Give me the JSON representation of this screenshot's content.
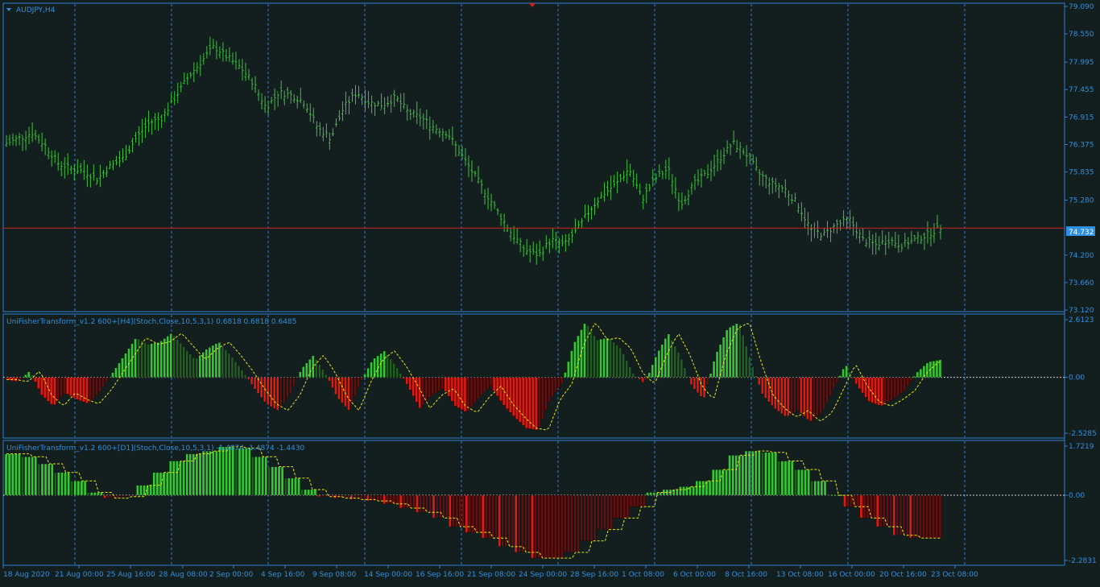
{
  "symbol_label": "AUDJPY,H4",
  "price_tag": "74.732",
  "price_line_value": 74.732,
  "colors": {
    "background": "#131f1f",
    "frame": "#2f7fd0",
    "grid": "#2f7fd0",
    "axis_text": "#2f8fe0",
    "candle": "#3fbf3f",
    "price_line": "#d02020",
    "bull_bar": "#33c733",
    "bull_bar_dark": "#1f5f1f",
    "bear_bar": "#e01a10",
    "bear_bar_dark": "#601010",
    "signal": "#e8e800",
    "trend": "#9aa0a0"
  },
  "x_axis_labels": [
    "18 Aug 2020",
    "21 Aug 00:00",
    "25 Aug 16:00",
    "28 Aug 08:00",
    "2 Sep 00:00",
    "4 Sep 16:00",
    "9 Sep 08:00",
    "14 Sep 00:00",
    "16 Sep 16:00",
    "21 Sep 08:00",
    "24 Sep 00:00",
    "28 Sep 16:00",
    "1 Oct 08:00",
    "6 Oct 00:00",
    "8 Oct 16:00",
    "13 Oct 08:00",
    "16 Oct 00:00",
    "20 Oct 16:00",
    "23 Oct 08:00"
  ],
  "main_pane": {
    "y_ticks": [
      "79.090",
      "78.550",
      "77.995",
      "77.455",
      "76.915",
      "76.375",
      "75.835",
      "75.280",
      "74.200",
      "73.660",
      "73.120"
    ],
    "ylim": [
      73.12,
      79.09
    ]
  },
  "indicator1": {
    "label": "UniFisherTransform_v1.2 600+[H4](Stoch,Close,10,5,3,1) 0.6818 0.6818 0.6485",
    "y_ticks": [
      "2.6123",
      "0.00",
      "-2.5285"
    ],
    "ylim": [
      -2.5285,
      2.6123
    ]
  },
  "indicator2": {
    "label": "UniFisherTransform_v1.2 600+[D1](Stoch,Close,10,5,3,1) -1.4874 -1.4874 -1.4430",
    "y_ticks": [
      "1.7219",
      "0.00",
      "-2.2831"
    ],
    "ylim": [
      -2.2831,
      1.7219
    ]
  },
  "chart_data": [
    {
      "type": "candlestick",
      "symbol": "AUDJPY",
      "timeframe": "H4",
      "ylim": [
        73.12,
        79.09
      ],
      "x_labels": [
        "18 Aug 2020",
        "21 Aug 00:00",
        "25 Aug 16:00",
        "28 Aug 08:00",
        "2 Sep 00:00",
        "4 Sep 16:00",
        "9 Sep 08:00",
        "14 Sep 00:00",
        "16 Sep 16:00",
        "21 Sep 08:00",
        "24 Sep 00:00",
        "28 Sep 16:00",
        "1 Oct 08:00",
        "6 Oct 00:00",
        "8 Oct 16:00",
        "13 Oct 08:00",
        "16 Oct 00:00",
        "20 Oct 16:00",
        "23 Oct 08:00"
      ],
      "close_path": [
        76.4,
        76.5,
        76.6,
        76.35,
        76.0,
        75.9,
        75.85,
        75.7,
        75.95,
        76.1,
        76.5,
        76.8,
        76.9,
        77.3,
        77.7,
        78.0,
        78.3,
        78.1,
        77.9,
        77.6,
        77.1,
        77.4,
        77.35,
        77.2,
        76.7,
        76.5,
        77.1,
        77.4,
        77.2,
        77.15,
        77.3,
        77.0,
        76.9,
        76.7,
        76.6,
        76.2,
        75.8,
        75.4,
        75.0,
        74.6,
        74.3,
        74.2,
        74.5,
        74.4,
        74.7,
        75.1,
        75.4,
        75.6,
        75.9,
        75.3,
        75.7,
        75.9,
        75.2,
        75.6,
        75.8,
        76.1,
        76.4,
        76.2,
        75.8,
        75.6,
        75.5,
        75.2,
        74.7,
        74.6,
        74.8,
        74.9,
        74.5,
        74.4,
        74.5,
        74.4,
        74.5,
        74.6,
        74.75
      ]
    },
    {
      "type": "histogram",
      "name": "UniFisherTransform H4",
      "ylim": [
        -2.5285,
        2.6123
      ],
      "values": [
        -0.1,
        -0.2,
        0.3,
        -0.8,
        -1.3,
        -0.7,
        -1.0,
        -1.2,
        -0.6,
        0.2,
        1.0,
        1.8,
        1.5,
        1.6,
        2.0,
        1.4,
        0.8,
        1.3,
        1.6,
        1.0,
        0.3,
        -0.5,
        -1.2,
        -1.5,
        -0.8,
        0.4,
        1.0,
        0.2,
        -0.9,
        -1.5,
        -0.2,
        0.8,
        1.2,
        0.5,
        -0.4,
        -1.4,
        -0.8,
        -0.5,
        -1.3,
        -1.6,
        -0.9,
        -0.4,
        -1.2,
        -1.8,
        -2.3,
        -2.4,
        -1.0,
        -0.3,
        1.5,
        2.5,
        1.7,
        1.8,
        1.3,
        0.2,
        -0.3,
        1.0,
        2.0,
        1.0,
        -0.4,
        -1.0,
        1.0,
        2.2,
        2.5,
        0.7,
        -0.8,
        -1.4,
        -1.8,
        -1.5,
        -2.0,
        -1.6,
        -0.5,
        0.6,
        -0.4,
        -1.1,
        -1.3,
        -1.0,
        -0.6,
        0.2,
        0.7,
        0.8
      ]
    },
    {
      "type": "histogram",
      "name": "UniFisherTransform D1",
      "ylim": [
        -2.2831,
        1.7219
      ],
      "values": [
        1.45,
        1.35,
        1.1,
        0.8,
        0.5,
        0.1,
        -0.1,
        -0.05,
        0.35,
        0.8,
        1.2,
        1.45,
        1.55,
        1.7,
        1.65,
        1.35,
        1.0,
        0.6,
        0.2,
        -0.05,
        -0.1,
        -0.15,
        -0.2,
        -0.3,
        -0.45,
        -0.6,
        -0.8,
        -1.1,
        -1.3,
        -1.5,
        -1.8,
        -2.0,
        -2.2,
        -2.2,
        -2.0,
        -1.6,
        -1.2,
        -0.8,
        -0.4,
        0.1,
        0.2,
        0.3,
        0.5,
        0.9,
        1.4,
        1.55,
        1.5,
        1.2,
        0.9,
        0.5,
        0.0,
        -0.4,
        -0.8,
        -1.1,
        -1.4,
        -1.5,
        -1.5
      ]
    }
  ]
}
